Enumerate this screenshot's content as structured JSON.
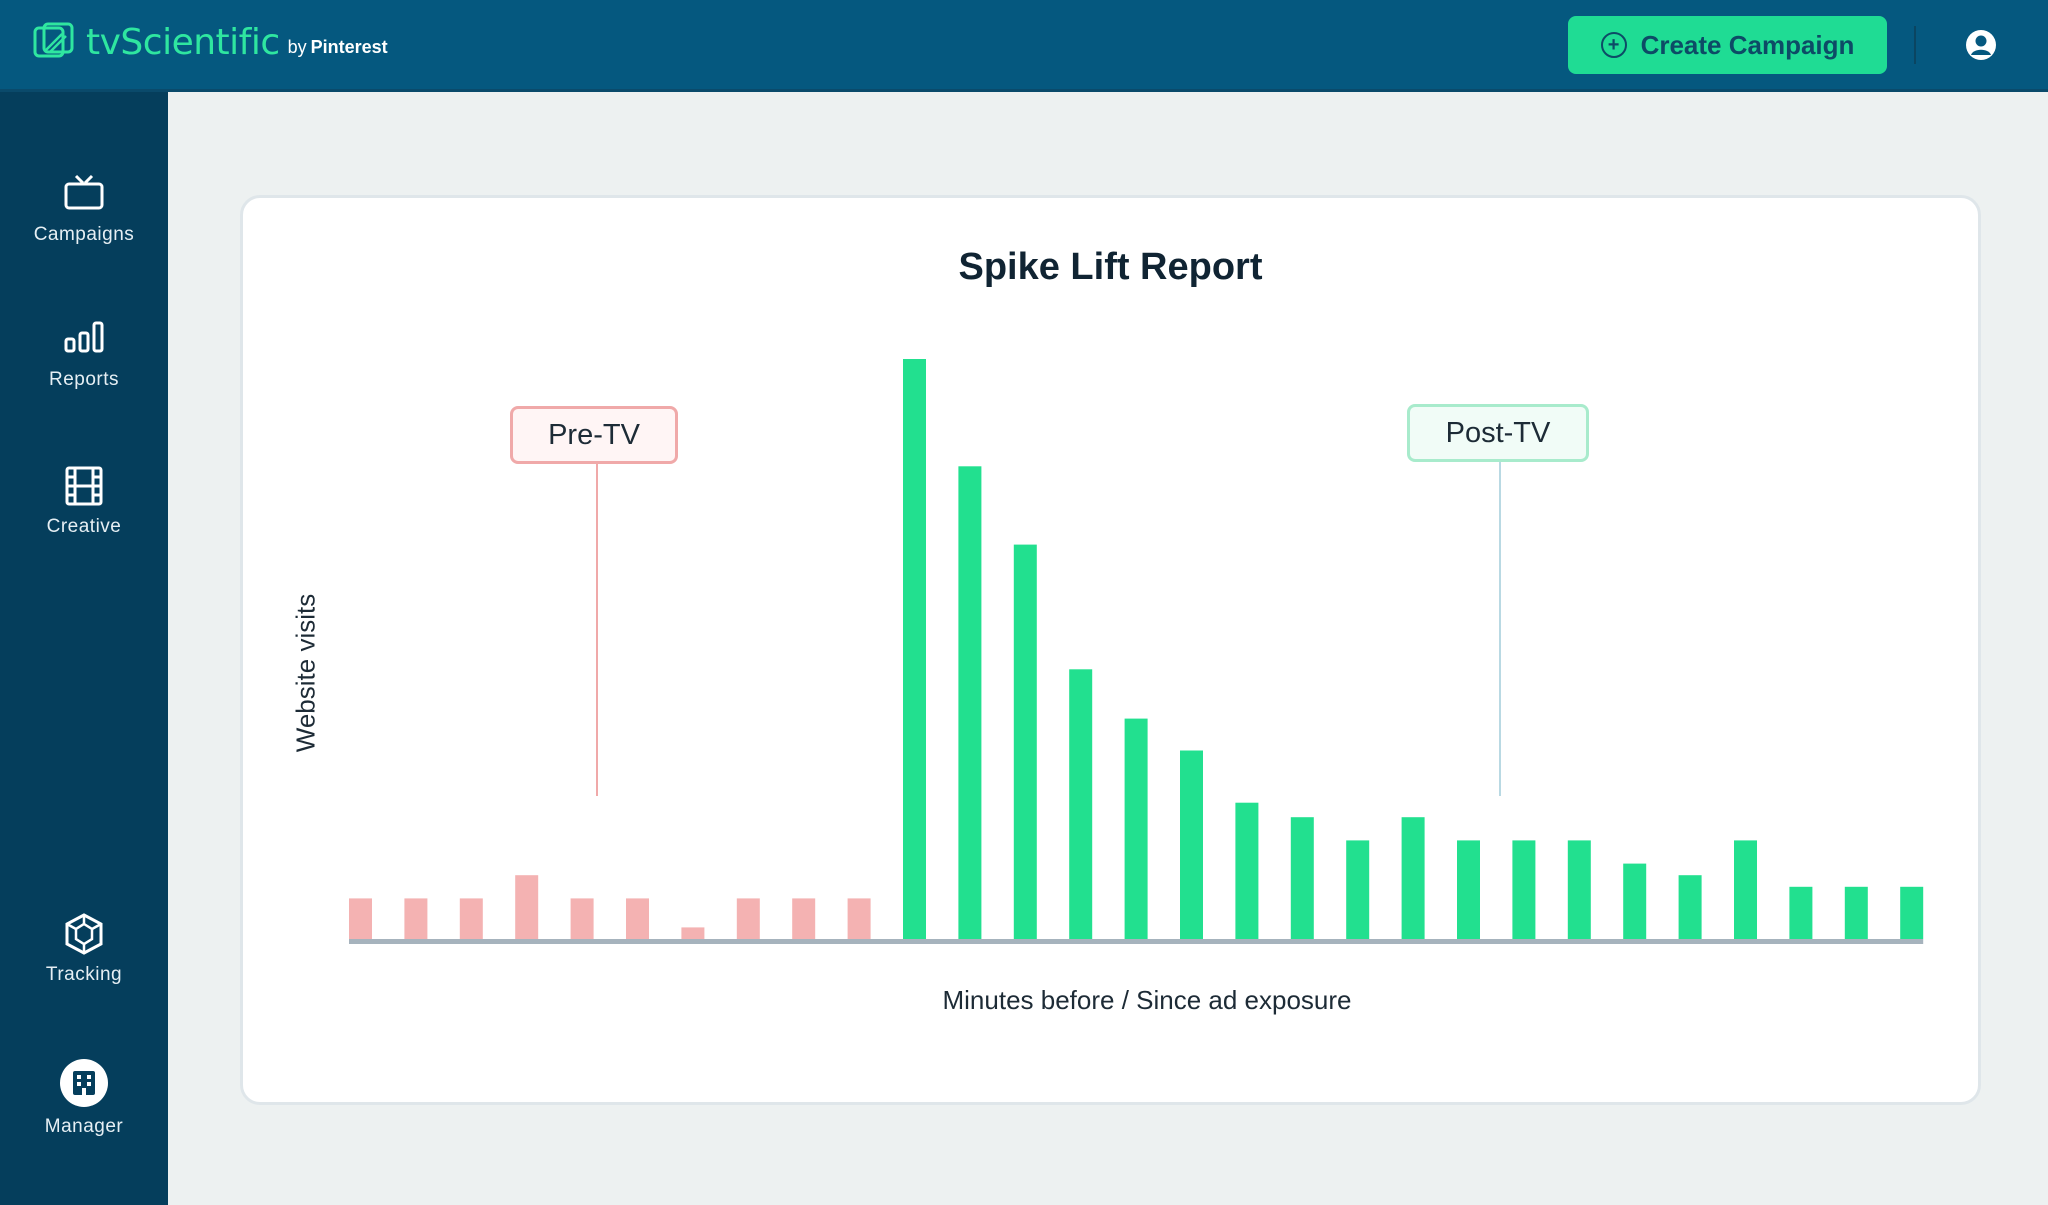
{
  "header": {
    "logo_text": "tvScientific",
    "logo_by": "by",
    "logo_partner": "Pinterest",
    "create_button_label": "Create Campaign",
    "account_icon": "account-circle-icon"
  },
  "sidebar": {
    "items": [
      {
        "label": "Campaigns",
        "icon": "tv-icon"
      },
      {
        "label": "Reports",
        "icon": "bar-chart-icon"
      },
      {
        "label": "Creative",
        "icon": "film-icon"
      },
      {
        "label": "Tracking",
        "icon": "cube-icon"
      },
      {
        "label": "Manager",
        "icon": "building-icon"
      }
    ]
  },
  "report": {
    "title": "Spike Lift Report",
    "pre_label": "Pre-TV",
    "post_label": "Post-TV"
  },
  "colors": {
    "brand_green": "#1fdc94",
    "pre_bar": "#f4b2b2",
    "post_bar": "#22e08f",
    "header_bg": "#05587f",
    "sidebar_bg": "#053e5c"
  },
  "chart_data": {
    "type": "bar",
    "title": "Spike Lift Report",
    "xlabel": "Minutes before / Since ad exposure",
    "ylabel": "Website visits",
    "grid": false,
    "series": [
      {
        "name": "Pre-TV",
        "values": [
          7,
          7,
          7,
          11,
          7,
          7,
          2,
          7,
          7,
          7,
          null,
          null,
          null,
          null,
          null,
          null,
          null,
          null,
          null,
          null,
          null,
          null,
          null,
          null,
          null,
          null,
          null,
          null,
          null
        ]
      },
      {
        "name": "Post-TV",
        "values": [
          null,
          null,
          null,
          null,
          null,
          null,
          null,
          null,
          null,
          null,
          100,
          81.5,
          68,
          46.5,
          38,
          32.5,
          23.5,
          21,
          17,
          21,
          17,
          17,
          17,
          13,
          11,
          17,
          9,
          9,
          9
        ]
      }
    ],
    "ylim": [
      0,
      100
    ]
  }
}
